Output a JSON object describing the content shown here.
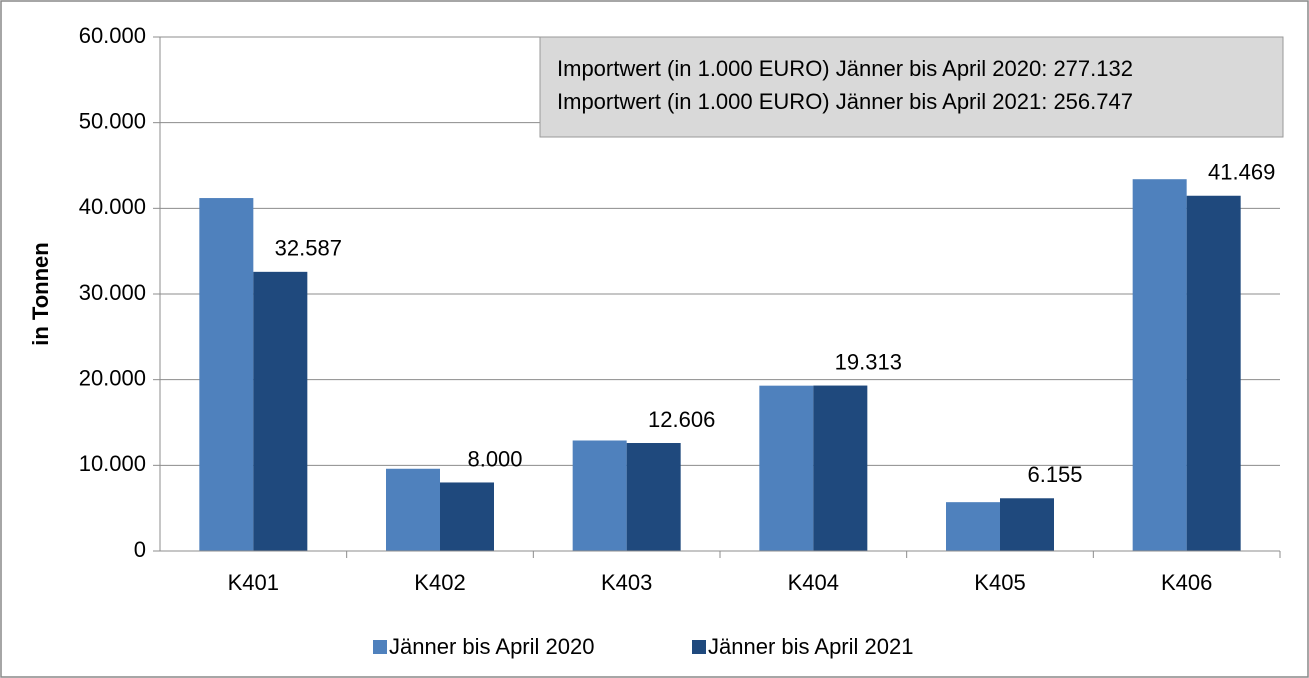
{
  "chart_data": {
    "type": "bar",
    "y_axis_label": "in Tonnen",
    "annotations": [
      "Importwert (in 1.000 EURO) Jänner bis April 2020: 277.132",
      "Importwert (in 1.000 EURO) Jänner bis April 2021: 256.747"
    ],
    "categories": [
      "K401",
      "K402",
      "K403",
      "K404",
      "K405",
      "K406"
    ],
    "series": [
      {
        "name": "Jänner bis April 2020",
        "color": "#4f81bd",
        "values": [
          41200,
          9600,
          12900,
          19300,
          5700,
          43400
        ]
      },
      {
        "name": "Jänner bis April 2021",
        "color": "#1f497d",
        "values": [
          32587,
          8000,
          12606,
          19313,
          6155,
          41469
        ],
        "value_labels": [
          "32.587",
          "8.000",
          "12.606",
          "19.313",
          "6.155",
          "41.469"
        ]
      }
    ],
    "ylim": [
      0,
      60000
    ],
    "yticks": [
      0,
      {
        "value": 10000,
        "label": "10.000"
      },
      {
        "value": 20000,
        "label": "20.000"
      },
      {
        "value": 30000,
        "label": "30.000"
      },
      {
        "value": 40000,
        "label": "40.000"
      },
      {
        "value": 50000,
        "label": "50.000"
      },
      {
        "value": 60000,
        "label": "60.000"
      }
    ],
    "grid": true,
    "legend": "bottom"
  }
}
